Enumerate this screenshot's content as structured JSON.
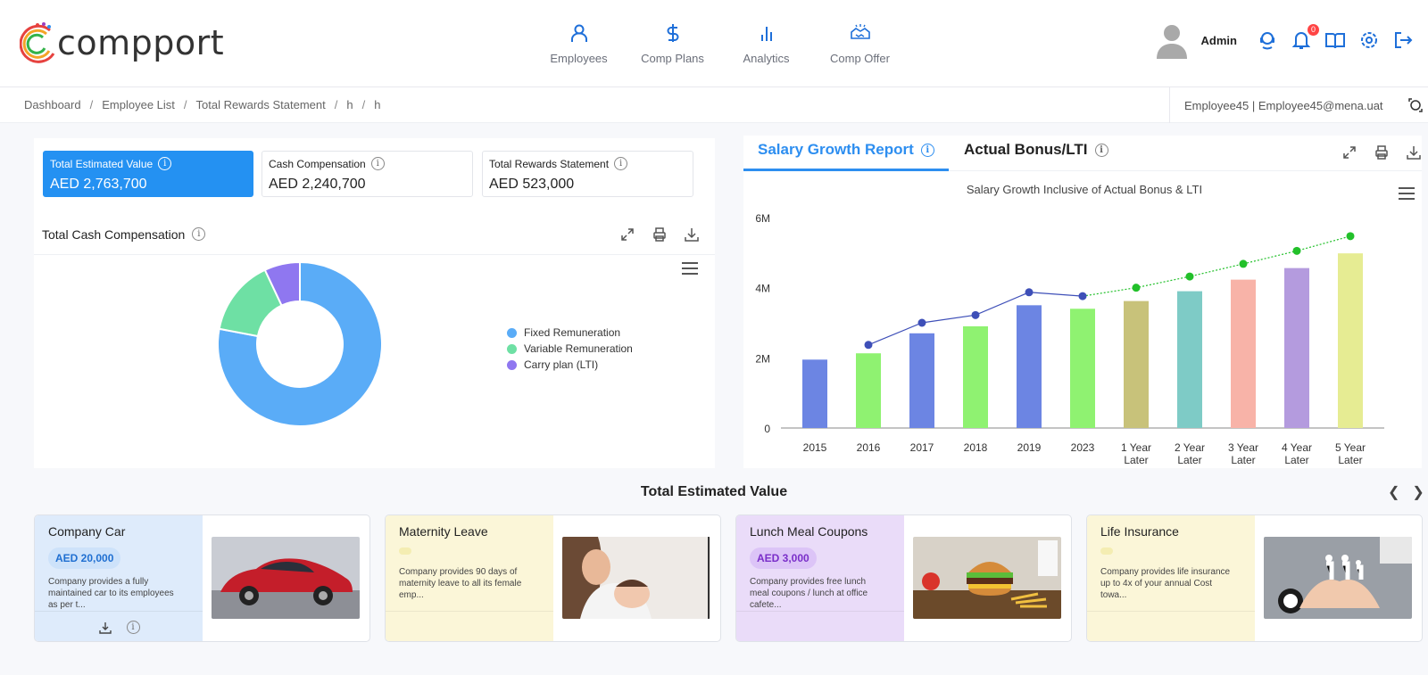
{
  "app": {
    "name": "compport"
  },
  "nav": [
    {
      "label": "Employees",
      "icon": "person-icon"
    },
    {
      "label": "Comp Plans",
      "icon": "dollar-icon"
    },
    {
      "label": "Analytics",
      "icon": "bar-chart-icon"
    },
    {
      "label": "Comp Offer",
      "icon": "handshake-icon"
    }
  ],
  "user": {
    "name": "Admin",
    "notifications": "0"
  },
  "breadcrumb": [
    "Dashboard",
    "Employee List",
    "Total Rewards Statement",
    "h",
    "h"
  ],
  "employee_info": "Employee45 | Employee45@mena.uat",
  "kpis": [
    {
      "title": "Total Estimated Value",
      "value": "AED 2,763,700"
    },
    {
      "title": "Cash Compensation",
      "value": "AED 2,240,700"
    },
    {
      "title": "Total Rewards Statement",
      "value": "AED 523,000"
    }
  ],
  "cash_panel": {
    "title": "Total Cash Compensation"
  },
  "salary_panel": {
    "tab_active": "Salary Growth Report",
    "tab_other": "Actual Bonus/LTI"
  },
  "chart_data": [
    {
      "type": "pie",
      "title": "",
      "labels": [
        "Fixed Remuneration",
        "Variable Remuneration",
        "Carry plan (LTI)"
      ],
      "values": [
        78,
        15,
        7
      ],
      "colors": [
        "#5aacf7",
        "#6ee0a4",
        "#8f77f0"
      ],
      "legend": "right"
    },
    {
      "type": "bar",
      "title": "Salary Growth Inclusive of Actual Bonus & LTI",
      "categories": [
        "2015",
        "2016",
        "2017",
        "2018",
        "2019",
        "2023",
        "1 Year Later",
        "2 Year Later",
        "3 Year Later",
        "4 Year Later",
        "5 Year Later"
      ],
      "yticks": [
        "0",
        "2M",
        "4M",
        "6M"
      ],
      "ylim": [
        0,
        6000000
      ],
      "series": [
        {
          "values": [
            1950000,
            2130000,
            2700000,
            2900000,
            3500000,
            3400000,
            3620000,
            3900000,
            4230000,
            4560000,
            4980000
          ]
        },
        {
          "values": [
            null,
            2370000,
            3000000,
            3220000,
            3870000,
            3760000,
            4000000,
            4320000,
            4680000,
            5050000,
            5470000
          ]
        }
      ],
      "bar_colors": [
        "#6c85e3",
        "#8ff271",
        "#6c85e3",
        "#8ff271",
        "#6c85e3",
        "#8ff271",
        "#c8c27a",
        "#7ecbc6",
        "#f8b3a8",
        "#b49bde",
        "#e6ec93"
      ],
      "grid": false
    }
  ],
  "tev": {
    "title": "Total Estimated Value"
  },
  "tiles": [
    {
      "name": "Company Car",
      "amount": "AED 20,000",
      "desc": "Company provides a fully maintained car to its employees as per t...",
      "bg": "#deebfb",
      "amt_bg": "#cde2fa",
      "amt_color": "#1f6fd1",
      "image": "red-car"
    },
    {
      "name": "Maternity Leave",
      "amount": "",
      "desc": "Company provides 90 days of maternity leave to all its female emp...",
      "bg": "#fbf6d8",
      "amt_bg": "#f4edb2",
      "amt_color": "#555",
      "image": "mother-baby"
    },
    {
      "name": "Lunch Meal Coupons",
      "amount": "AED 3,000",
      "desc": "Company provides free lunch meal coupons / lunch at office cafete...",
      "bg": "#eadcf9",
      "amt_bg": "#dcc4f7",
      "amt_color": "#7a2ec9",
      "image": "burger-meal"
    },
    {
      "name": "Life Insurance",
      "amount": "",
      "desc": "Company provides life insurance up to 4x of your annual Cost towa...",
      "bg": "#fbf6d8",
      "amt_bg": "#f4edb2",
      "amt_color": "#555",
      "image": "family-hands"
    }
  ]
}
